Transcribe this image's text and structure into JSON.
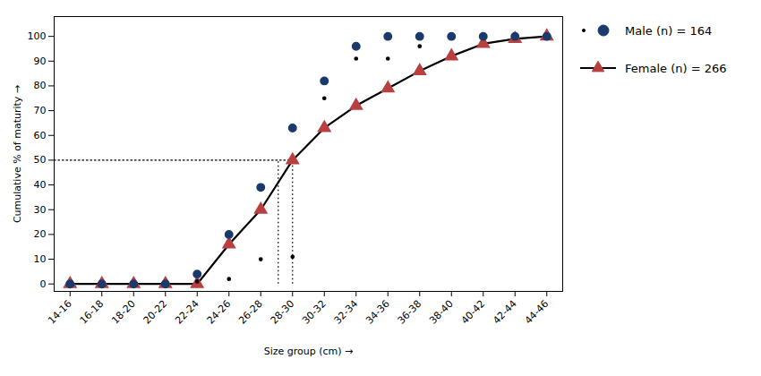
{
  "chart_data": {
    "type": "line",
    "xlabel": "Size group (cm)",
    "ylabel": "Cumulative % of maturity",
    "categories": [
      "14-16",
      "16-18",
      "18-20",
      "20-22",
      "22-24",
      "24-26",
      "26-28",
      "28-30",
      "30-32",
      "32-34",
      "34-36",
      "36-38",
      "38-40",
      "40-42",
      "42-44",
      "44-46"
    ],
    "series": [
      {
        "type": "scatter",
        "marker": "dot",
        "color": "#000000",
        "values": [
          0,
          0,
          0,
          0,
          1,
          2,
          10,
          11,
          75,
          91,
          91,
          96,
          100,
          100,
          100,
          100
        ]
      },
      {
        "name": "Male (n) = 164",
        "type": "scatter",
        "marker": "circle",
        "color": "#1a3a6e",
        "values": [
          0,
          0,
          0,
          0,
          4,
          20,
          39,
          63,
          82,
          96,
          100,
          100,
          100,
          100,
          100,
          100
        ]
      },
      {
        "name": "Female (n) = 266",
        "type": "line",
        "marker": "triangle",
        "color": "#b94040",
        "values": [
          0,
          0,
          0,
          0,
          0,
          16,
          30,
          50,
          63,
          72,
          79,
          86,
          92,
          97,
          99,
          100
        ]
      }
    ],
    "reference_lines": {
      "y": 50,
      "x": [
        6.55,
        7.0
      ],
      "y_start": 0,
      "line_style": "dotted"
    },
    "ylim": [
      -3,
      108
    ],
    "yticks": [
      0,
      10,
      20,
      30,
      40,
      50,
      60,
      70,
      80,
      90,
      100
    ],
    "grid": false,
    "legend": "right"
  }
}
